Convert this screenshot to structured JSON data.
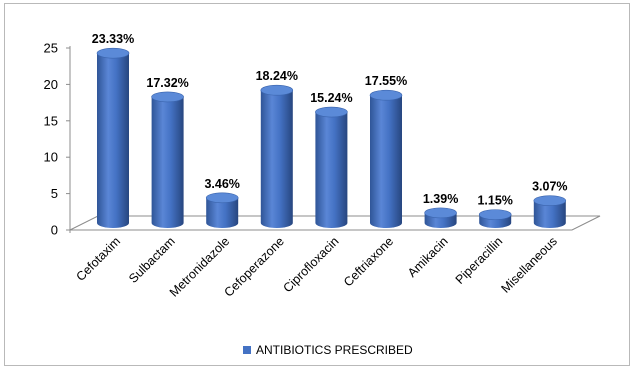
{
  "chart_data": {
    "type": "bar",
    "categories": [
      "Cefotaxim",
      "Sulbactam",
      "Metronidazole",
      "Cefoperazone",
      "Ciprofloxacin",
      "Ceftriaxone",
      "Amikacin",
      "Piperacillin",
      "Misellaneous"
    ],
    "series": [
      {
        "name": "ANTIBIOTICS PRESCRIBED",
        "values": [
          23.33,
          17.32,
          3.46,
          18.24,
          15.24,
          17.55,
          1.39,
          1.15,
          3.07
        ],
        "labels": [
          "23.33%",
          "17.32%",
          "3.46%",
          "18.24%",
          "15.24%",
          "17.55%",
          "1.39%",
          "1.15%",
          "3.07%"
        ]
      }
    ],
    "yticks": [
      0,
      5,
      10,
      15,
      20,
      25
    ],
    "ylim": [
      0,
      25
    ],
    "legend_position": "bottom",
    "bar_color": "#4472c4",
    "grid": false
  }
}
